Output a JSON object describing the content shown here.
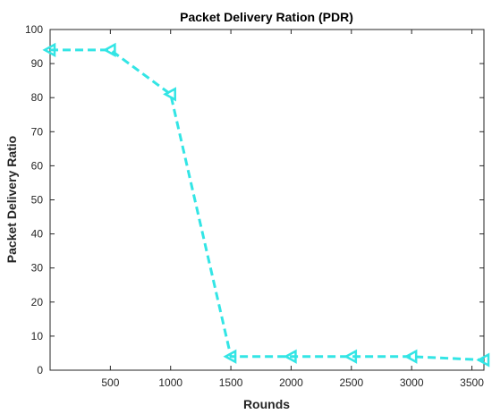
{
  "chart_data": {
    "type": "line",
    "title": "Packet Delivery Ration (PDR)",
    "xlabel": "Rounds",
    "ylabel": "Packet Delivery Ratio",
    "xlim": [
      0,
      3600
    ],
    "ylim": [
      0,
      100
    ],
    "xticks": [
      500,
      1000,
      1500,
      2000,
      2500,
      3000,
      3500
    ],
    "yticks": [
      0,
      10,
      20,
      30,
      40,
      50,
      60,
      70,
      80,
      90,
      100
    ],
    "grid": false,
    "line_style": "dashed",
    "marker": "left-triangle",
    "series": [
      {
        "color": "#33E5E5",
        "x": [
          0,
          500,
          1000,
          1500,
          2000,
          2500,
          3000,
          3600
        ],
        "y": [
          94,
          94,
          81,
          4,
          4,
          4,
          4,
          3
        ]
      }
    ]
  }
}
